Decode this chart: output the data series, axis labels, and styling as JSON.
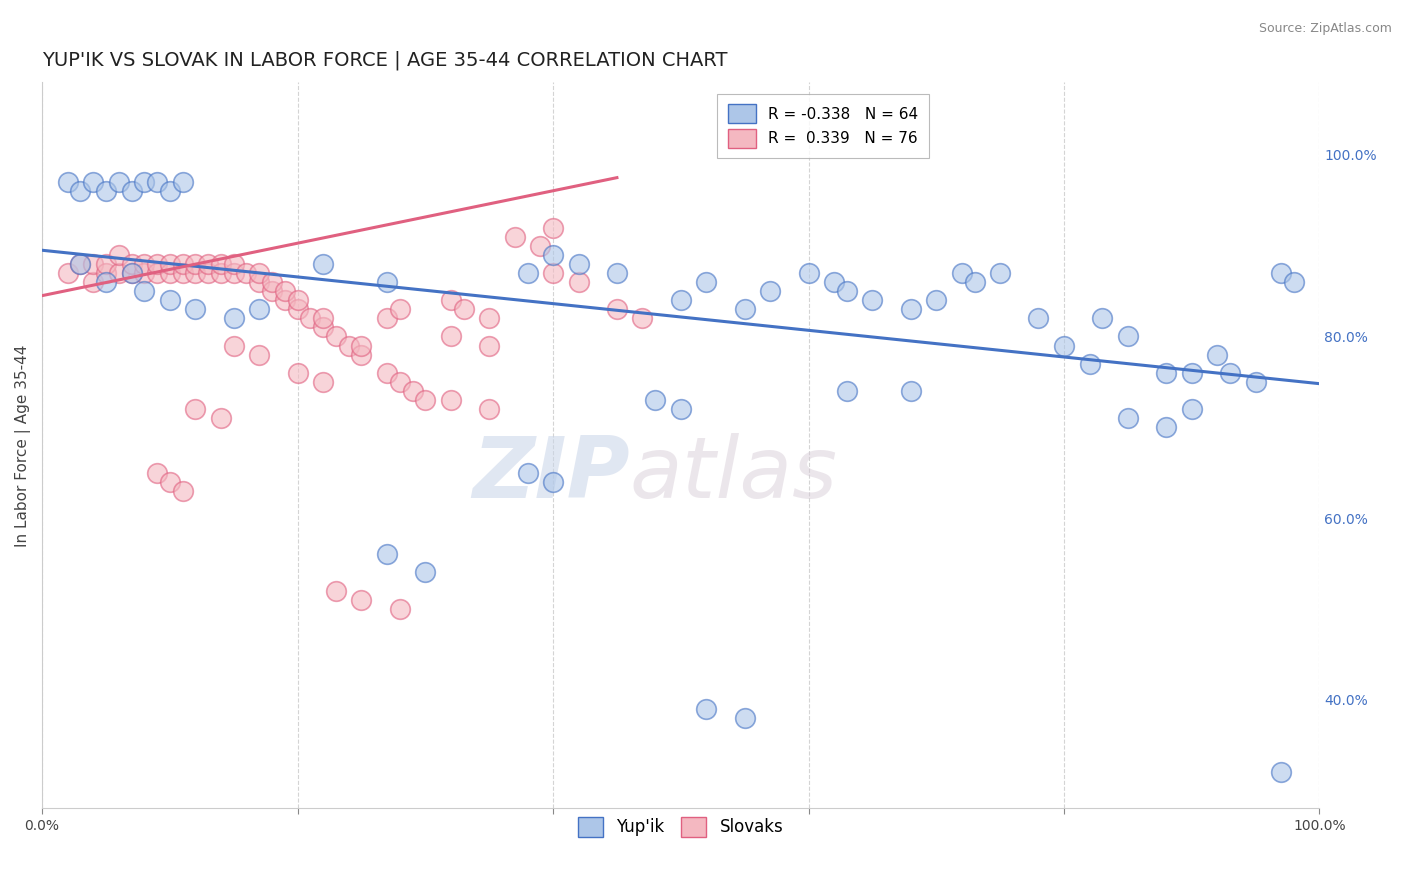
{
  "title": "YUP'IK VS SLOVAK IN LABOR FORCE | AGE 35-44 CORRELATION CHART",
  "source_text": "Source: ZipAtlas.com",
  "ylabel": "In Labor Force | Age 35-44",
  "xlim": [
    0,
    1
  ],
  "ylim": [
    0.28,
    1.08
  ],
  "yticks": [
    0.4,
    0.6,
    0.8,
    1.0
  ],
  "ytick_labels": [
    "40.0%",
    "60.0%",
    "80.0%",
    "100.0%"
  ],
  "xticks": [
    0.0,
    0.2,
    0.4,
    0.6,
    0.8,
    1.0
  ],
  "xtick_labels": [
    "0.0%",
    "",
    "",
    "",
    "",
    "100.0%"
  ],
  "legend_blue_label": "R = -0.338   N = 64",
  "legend_pink_label": "R =  0.339   N = 76",
  "blue_scatter_x": [
    0.02,
    0.03,
    0.04,
    0.05,
    0.06,
    0.07,
    0.08,
    0.09,
    0.1,
    0.11,
    0.03,
    0.05,
    0.07,
    0.08,
    0.1,
    0.12,
    0.15,
    0.17,
    0.22,
    0.27,
    0.38,
    0.4,
    0.42,
    0.45,
    0.5,
    0.52,
    0.55,
    0.57,
    0.6,
    0.62,
    0.63,
    0.65,
    0.68,
    0.7,
    0.72,
    0.73,
    0.75,
    0.78,
    0.8,
    0.82,
    0.83,
    0.85,
    0.88,
    0.9,
    0.92,
    0.93,
    0.95,
    0.97,
    0.98,
    0.63,
    0.68,
    0.85,
    0.88,
    0.9,
    0.48,
    0.5,
    0.38,
    0.4,
    0.27,
    0.3,
    0.52,
    0.55,
    0.97
  ],
  "blue_scatter_y": [
    0.97,
    0.96,
    0.97,
    0.96,
    0.97,
    0.96,
    0.97,
    0.97,
    0.96,
    0.97,
    0.88,
    0.86,
    0.87,
    0.85,
    0.84,
    0.83,
    0.82,
    0.83,
    0.88,
    0.86,
    0.87,
    0.89,
    0.88,
    0.87,
    0.84,
    0.86,
    0.83,
    0.85,
    0.87,
    0.86,
    0.85,
    0.84,
    0.83,
    0.84,
    0.87,
    0.86,
    0.87,
    0.82,
    0.79,
    0.77,
    0.82,
    0.8,
    0.76,
    0.76,
    0.78,
    0.76,
    0.75,
    0.87,
    0.86,
    0.74,
    0.74,
    0.71,
    0.7,
    0.72,
    0.73,
    0.72,
    0.65,
    0.64,
    0.56,
    0.54,
    0.39,
    0.38,
    0.32
  ],
  "pink_scatter_x": [
    0.02,
    0.03,
    0.04,
    0.04,
    0.05,
    0.05,
    0.06,
    0.06,
    0.07,
    0.07,
    0.08,
    0.08,
    0.09,
    0.09,
    0.1,
    0.1,
    0.11,
    0.11,
    0.12,
    0.12,
    0.13,
    0.13,
    0.14,
    0.14,
    0.15,
    0.15,
    0.16,
    0.17,
    0.17,
    0.18,
    0.18,
    0.19,
    0.19,
    0.2,
    0.2,
    0.21,
    0.22,
    0.22,
    0.23,
    0.24,
    0.25,
    0.25,
    0.27,
    0.28,
    0.29,
    0.3,
    0.32,
    0.33,
    0.35,
    0.37,
    0.39,
    0.4,
    0.27,
    0.28,
    0.32,
    0.35,
    0.4,
    0.42,
    0.45,
    0.47,
    0.32,
    0.35,
    0.2,
    0.22,
    0.15,
    0.17,
    0.12,
    0.14,
    0.09,
    0.1,
    0.11,
    0.23,
    0.25,
    0.28
  ],
  "pink_scatter_y": [
    0.87,
    0.88,
    0.86,
    0.88,
    0.87,
    0.88,
    0.87,
    0.89,
    0.87,
    0.88,
    0.87,
    0.88,
    0.87,
    0.88,
    0.87,
    0.88,
    0.87,
    0.88,
    0.87,
    0.88,
    0.87,
    0.88,
    0.87,
    0.88,
    0.87,
    0.88,
    0.87,
    0.86,
    0.87,
    0.85,
    0.86,
    0.84,
    0.85,
    0.83,
    0.84,
    0.82,
    0.81,
    0.82,
    0.8,
    0.79,
    0.78,
    0.79,
    0.76,
    0.75,
    0.74,
    0.73,
    0.84,
    0.83,
    0.82,
    0.91,
    0.9,
    0.92,
    0.82,
    0.83,
    0.8,
    0.79,
    0.87,
    0.86,
    0.83,
    0.82,
    0.73,
    0.72,
    0.76,
    0.75,
    0.79,
    0.78,
    0.72,
    0.71,
    0.65,
    0.64,
    0.63,
    0.52,
    0.51,
    0.5
  ],
  "blue_line_x": [
    0.0,
    1.0
  ],
  "blue_line_y": [
    0.895,
    0.748
  ],
  "pink_line_x": [
    0.0,
    0.45
  ],
  "pink_line_y": [
    0.845,
    0.975
  ],
  "blue_color": "#4472c4",
  "pink_color": "#e06080",
  "blue_scatter_color": "#adc6e8",
  "pink_scatter_color": "#f4b8c1",
  "watermark_zip": "ZIP",
  "watermark_atlas": "atlas",
  "watermark_color": "#d0d8e8",
  "watermark_atlas_color": "#d0c8d0",
  "background_color": "#ffffff",
  "grid_color": "#d0d0d0",
  "title_fontsize": 14,
  "axis_label_fontsize": 11
}
